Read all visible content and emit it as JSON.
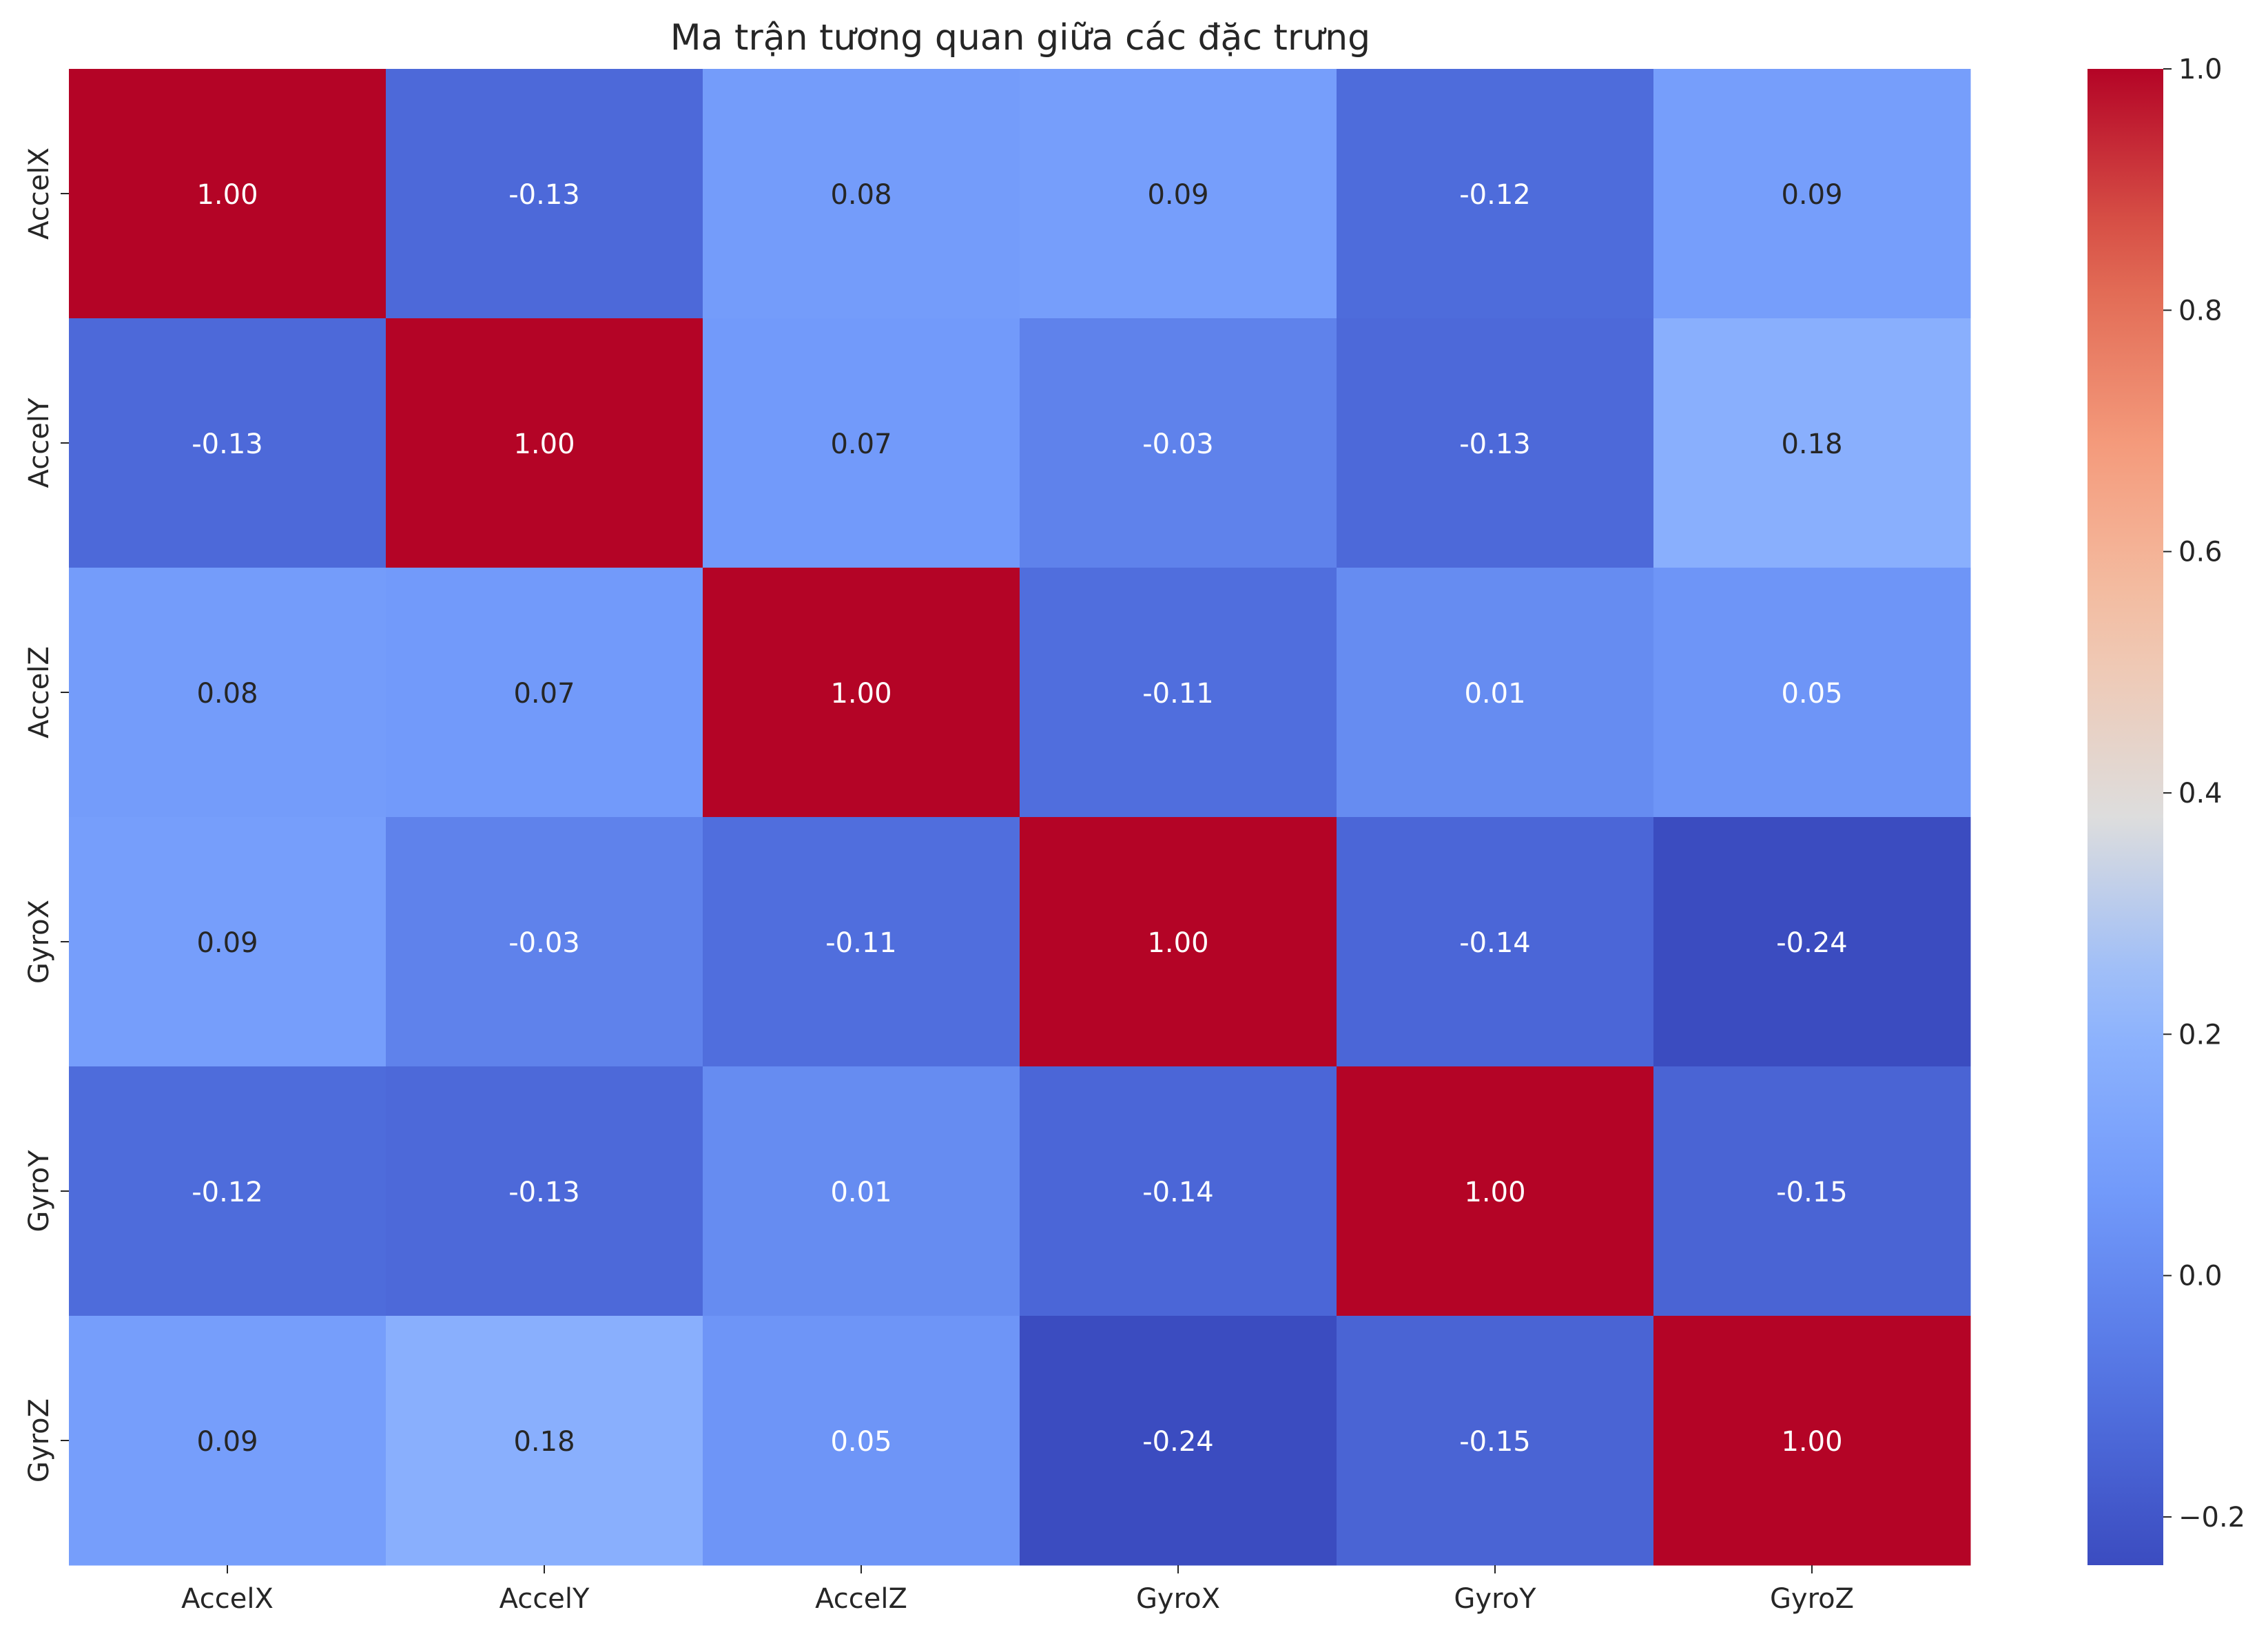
{
  "chart_data": {
    "type": "heatmap",
    "title": "Ma trận tương quan giữa các đặc trưng",
    "xlabel": "",
    "ylabel": "",
    "x_labels": [
      "AccelX",
      "AccelY",
      "AccelZ",
      "GyroX",
      "GyroY",
      "GyroZ"
    ],
    "y_labels": [
      "AccelX",
      "AccelY",
      "AccelZ",
      "GyroX",
      "GyroY",
      "GyroZ"
    ],
    "values": [
      [
        1.0,
        -0.13,
        0.08,
        0.09,
        -0.12,
        0.09
      ],
      [
        -0.13,
        1.0,
        0.07,
        -0.03,
        -0.13,
        0.18
      ],
      [
        0.08,
        0.07,
        1.0,
        -0.11,
        0.01,
        0.05
      ],
      [
        0.09,
        -0.03,
        -0.11,
        1.0,
        -0.14,
        -0.24
      ],
      [
        -0.12,
        -0.13,
        0.01,
        -0.14,
        1.0,
        -0.15
      ],
      [
        0.09,
        0.18,
        0.05,
        -0.24,
        -0.15,
        1.0
      ]
    ],
    "cell_labels": [
      [
        "1.00",
        "-0.13",
        "0.08",
        "0.09",
        "-0.12",
        "0.09"
      ],
      [
        "-0.13",
        "1.00",
        "0.07",
        "-0.03",
        "-0.13",
        "0.18"
      ],
      [
        "0.08",
        "0.07",
        "1.00",
        "-0.11",
        "0.01",
        "0.05"
      ],
      [
        "0.09",
        "-0.03",
        "-0.11",
        "1.00",
        "-0.14",
        "-0.24"
      ],
      [
        "-0.12",
        "-0.13",
        "0.01",
        "-0.14",
        "1.00",
        "-0.15"
      ],
      [
        "0.09",
        "0.18",
        "0.05",
        "-0.24",
        "-0.15",
        "1.00"
      ]
    ],
    "colormap": "coolwarm",
    "vmin": -0.24,
    "vmax": 1.0,
    "colorbar": {
      "ticks": [
        -0.2,
        0.0,
        0.2,
        0.4,
        0.6,
        0.8,
        1.0
      ],
      "tick_labels": [
        "−0.2",
        "0.0",
        "0.2",
        "0.4",
        "0.6",
        "0.8",
        "1.0"
      ]
    },
    "colors": {
      "cold": "#3b4cc0",
      "neutral": "#dddddd",
      "hot": "#b40426",
      "text_light": "#ffffff",
      "text_dark": "#262626"
    }
  }
}
